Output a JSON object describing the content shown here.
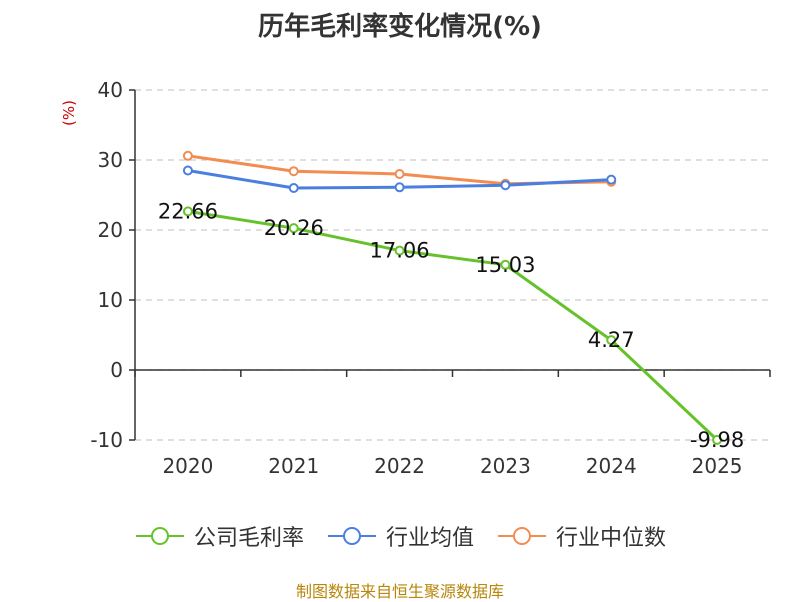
{
  "chart_data": {
    "type": "line",
    "title": "历年毛利率变化情况(%)",
    "ylabel": "(%)",
    "xlabel": "",
    "categories": [
      "2020",
      "2021",
      "2022",
      "2023",
      "2024",
      "2025"
    ],
    "ylim": [
      -10,
      40
    ],
    "yticks": [
      "40",
      "30",
      "20",
      "10",
      "0",
      "-10"
    ],
    "grid": true,
    "legend_position": "bottom",
    "series": [
      {
        "name": "公司毛利率",
        "color": "#66c22a",
        "values": [
          22.66,
          20.26,
          17.06,
          15.03,
          4.27,
          -9.98
        ],
        "labels": [
          "22.66",
          "20.26",
          "17.06",
          "15.03",
          "4.27",
          "-9.98"
        ]
      },
      {
        "name": "行业均值",
        "color": "#4a7fe0",
        "values": [
          28.5,
          26.0,
          26.1,
          26.4,
          27.2,
          null
        ]
      },
      {
        "name": "行业中位数",
        "color": "#f28c50",
        "values": [
          30.6,
          28.4,
          28.0,
          26.6,
          26.9,
          null
        ]
      }
    ]
  },
  "source": "制图数据来自恒生聚源数据库"
}
